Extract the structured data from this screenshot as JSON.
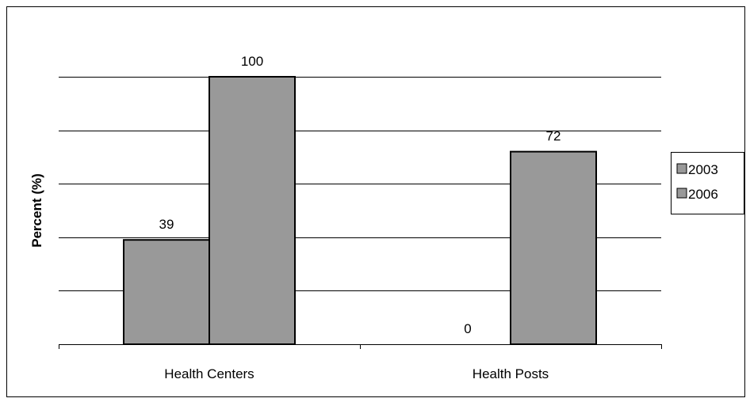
{
  "chart_data": {
    "type": "bar",
    "categories": [
      "Health Centers",
      "Health Posts"
    ],
    "series": [
      {
        "name": "2003",
        "values": [
          39,
          0
        ]
      },
      {
        "name": "2006",
        "values": [
          100,
          72
        ]
      }
    ],
    "data_labels": [
      [
        "39",
        "0"
      ],
      [
        "100",
        "72"
      ]
    ],
    "title": "",
    "xlabel": "",
    "ylabel": "Percent (%)",
    "ylim": [
      0,
      100
    ],
    "grid": true,
    "legend": "right",
    "colors": {
      "bar_fill": "#999999",
      "bar_stroke": "#000000",
      "grid": "#000000"
    }
  }
}
